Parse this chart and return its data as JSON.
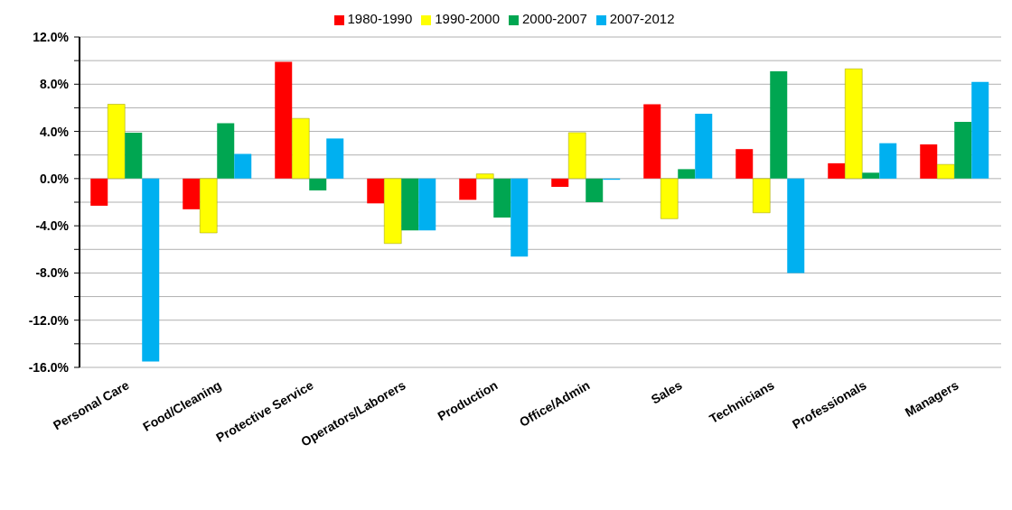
{
  "chart_data": {
    "type": "bar",
    "categories": [
      "Personal Care",
      "Food/Cleaning",
      "Protective Service",
      "Operators/Laborers",
      "Production",
      "Office/Admin",
      "Sales",
      "Technicians",
      "Professionals",
      "Managers"
    ],
    "series": [
      {
        "name": "1980-1990",
        "color": "#ff0000",
        "values": [
          -2.3,
          -2.6,
          9.9,
          -2.1,
          -1.8,
          -0.7,
          6.3,
          2.5,
          1.3,
          2.9
        ]
      },
      {
        "name": "1990-2000",
        "color": "#ffff00",
        "values": [
          6.3,
          -4.6,
          5.1,
          -5.5,
          0.4,
          3.9,
          -3.4,
          -2.9,
          9.3,
          1.2
        ]
      },
      {
        "name": "2000-2007",
        "color": "#00a651",
        "values": [
          3.9,
          4.7,
          -1.0,
          -4.4,
          -3.3,
          -2.0,
          0.8,
          9.1,
          0.5,
          4.8
        ]
      },
      {
        "name": "2007-2012",
        "color": "#00b0f0",
        "values": [
          -15.5,
          2.1,
          3.4,
          -4.4,
          -6.6,
          -0.1,
          5.5,
          -8.0,
          3.0,
          8.2
        ]
      }
    ],
    "ylim": [
      -16,
      12
    ],
    "yticks": [
      {
        "value": -16,
        "label": "-16.0%"
      },
      {
        "value": -14,
        "label": null
      },
      {
        "value": -12,
        "label": "-12.0%"
      },
      {
        "value": -10,
        "label": null
      },
      {
        "value": -8,
        "label": "-8.0%"
      },
      {
        "value": -6,
        "label": null
      },
      {
        "value": -4,
        "label": "-4.0%"
      },
      {
        "value": -2,
        "label": null
      },
      {
        "value": 0,
        "label": "0.0%"
      },
      {
        "value": 2,
        "label": null
      },
      {
        "value": 4,
        "label": "4.0%"
      },
      {
        "value": 6,
        "label": null
      },
      {
        "value": 8,
        "label": "8.0%"
      },
      {
        "value": 10,
        "label": null
      },
      {
        "value": 12,
        "label": "12.0%"
      }
    ],
    "grid": "y",
    "legend": "top"
  }
}
